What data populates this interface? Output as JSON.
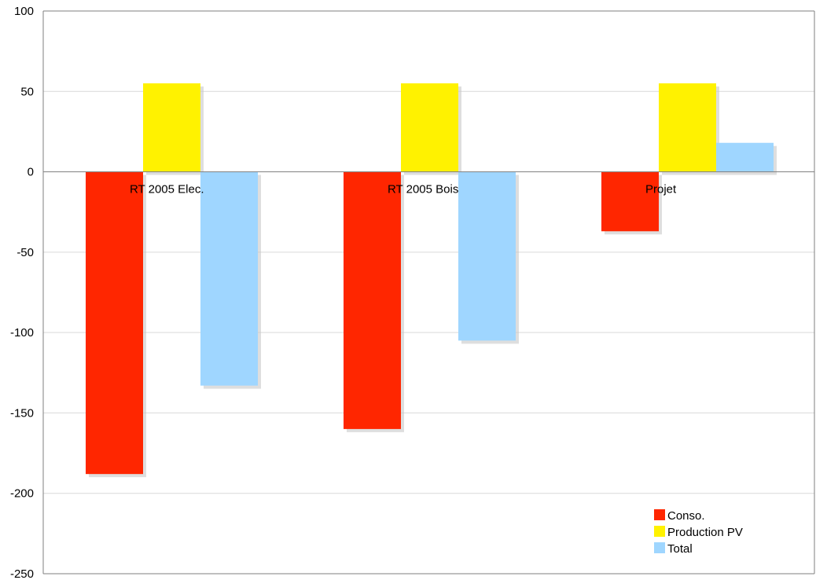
{
  "chart_data": {
    "type": "bar",
    "title": "",
    "xlabel": "",
    "ylabel": "",
    "categories": [
      "RT 2005 Elec.",
      "RT 2005 Bois",
      "Projet"
    ],
    "series": [
      {
        "name": "Conso.",
        "color": "#ff2600",
        "values": [
          -188,
          -160,
          -37
        ]
      },
      {
        "name": "Production PV",
        "color": "#fff200",
        "values": [
          55,
          55,
          55
        ]
      },
      {
        "name": "Total",
        "color": "#9fd6ff",
        "values": [
          -133,
          -105,
          18
        ]
      }
    ],
    "ylim": [
      -250,
      100
    ],
    "yticks": [
      100,
      50,
      0,
      -50,
      -100,
      -150,
      -200,
      -250
    ],
    "grid": true,
    "legend_position": "bottom-right"
  }
}
